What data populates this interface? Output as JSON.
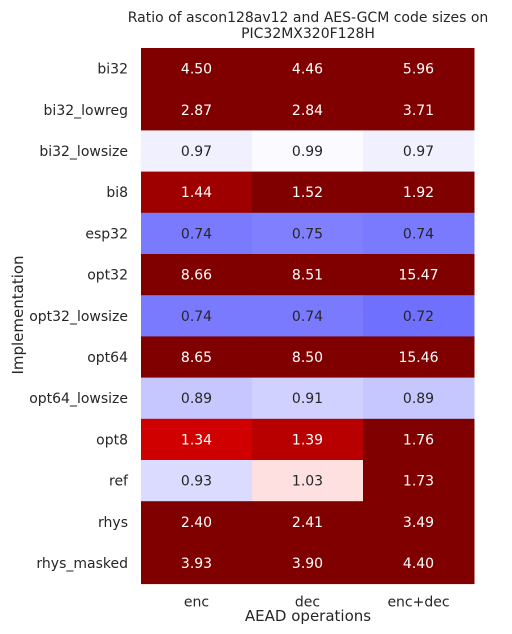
{
  "chart_data": {
    "type": "heatmap",
    "title_lines": [
      "Ratio of ascon128av12 and AES-GCM code sizes on",
      "PIC32MX320F128H"
    ],
    "xlabel": "AEAD operations",
    "ylabel": "Implementation",
    "columns": [
      "enc",
      "dec",
      "enc+dec"
    ],
    "rows": [
      "bi32",
      "bi32_lowreg",
      "bi32_lowsize",
      "bi8",
      "esp32",
      "opt32",
      "opt32_lowsize",
      "opt64",
      "opt64_lowsize",
      "opt8",
      "ref",
      "rhys",
      "rhys_masked"
    ],
    "values": [
      [
        4.5,
        4.46,
        5.96
      ],
      [
        2.87,
        2.84,
        3.71
      ],
      [
        0.97,
        0.99,
        0.97
      ],
      [
        1.44,
        1.52,
        1.92
      ],
      [
        0.74,
        0.75,
        0.74
      ],
      [
        8.66,
        8.51,
        15.47
      ],
      [
        0.74,
        0.74,
        0.72
      ],
      [
        8.65,
        8.5,
        15.46
      ],
      [
        0.89,
        0.91,
        0.89
      ],
      [
        1.34,
        1.39,
        1.76
      ],
      [
        0.93,
        1.03,
        1.73
      ],
      [
        2.4,
        2.41,
        3.49
      ],
      [
        3.93,
        3.9,
        4.4
      ]
    ],
    "value_format": "2 decimals",
    "colormap": "seismic",
    "color_center": 1.0,
    "grid": false,
    "colorbar": false
  }
}
